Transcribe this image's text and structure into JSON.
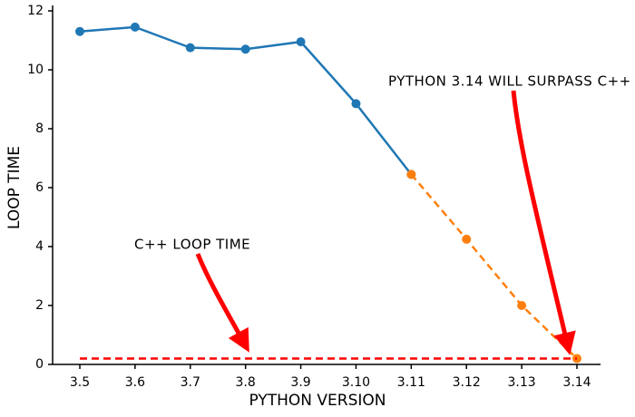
{
  "chart_data": {
    "type": "line",
    "xlabel": "PYTHON VERSION",
    "ylabel": "LOOP TIME",
    "categories": [
      "3.5",
      "3.6",
      "3.7",
      "3.8",
      "3.9",
      "3.10",
      "3.11",
      "3.12",
      "3.13",
      "3.14"
    ],
    "series": [
      {
        "color": "#1f77b4",
        "dash": false,
        "markers": true,
        "values": [
          11.3,
          11.45,
          10.75,
          10.7,
          10.95,
          8.85,
          6.45,
          null,
          null,
          null
        ]
      },
      {
        "color": "#ff7f0e",
        "dash": true,
        "markers": true,
        "values": [
          null,
          null,
          null,
          null,
          null,
          null,
          6.45,
          4.25,
          2.0,
          0.2
        ]
      },
      {
        "color": "#ff0000",
        "dash": true,
        "markers": false,
        "values": [
          0.2,
          0.2,
          0.2,
          0.2,
          0.2,
          0.2,
          0.2,
          0.2,
          0.2,
          0.2
        ]
      }
    ],
    "ylim": [
      0,
      12
    ],
    "yticks": [
      0,
      2,
      4,
      6,
      8,
      10,
      12
    ],
    "annotations": [
      "PYTHON 3.14 WILL SURPASS C++",
      "C++ LOOP TIME"
    ]
  }
}
